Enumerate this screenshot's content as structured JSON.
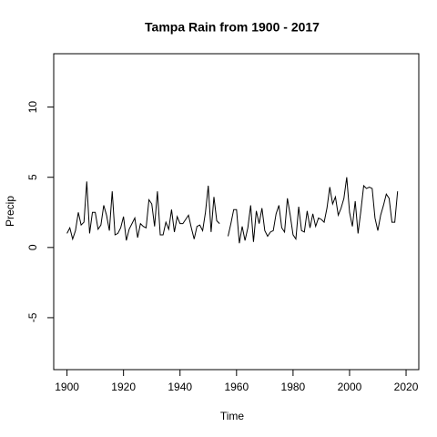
{
  "chart_data": {
    "type": "line",
    "title": "Tampa Rain from 1900 - 2017",
    "x_label": "Time",
    "y_label": "Precip",
    "x": [
      1900,
      1901,
      1902,
      1903,
      1904,
      1905,
      1906,
      1907,
      1908,
      1909,
      1910,
      1911,
      1912,
      1913,
      1914,
      1915,
      1916,
      1917,
      1918,
      1919,
      1920,
      1921,
      1922,
      1923,
      1924,
      1925,
      1926,
      1927,
      1928,
      1929,
      1930,
      1931,
      1932,
      1933,
      1934,
      1935,
      1936,
      1937,
      1938,
      1939,
      1940,
      1941,
      1942,
      1943,
      1944,
      1945,
      1946,
      1947,
      1948,
      1949,
      1950,
      1951,
      1952,
      1953,
      1954,
      1955,
      1956,
      1957,
      1958,
      1959,
      1960,
      1961,
      1962,
      1963,
      1964,
      1965,
      1966,
      1967,
      1968,
      1969,
      1970,
      1971,
      1972,
      1973,
      1974,
      1975,
      1976,
      1977,
      1978,
      1979,
      1980,
      1981,
      1982,
      1983,
      1984,
      1985,
      1986,
      1987,
      1988,
      1989,
      1990,
      1991,
      1992,
      1993,
      1994,
      1995,
      1996,
      1997,
      1998,
      1999,
      2000,
      2001,
      2002,
      2003,
      2004,
      2005,
      2006,
      2007,
      2008,
      2009,
      2010,
      2011,
      2012,
      2013,
      2014,
      2015,
      2016,
      2017
    ],
    "values": [
      1.0,
      1.4,
      0.6,
      1.2,
      2.5,
      1.6,
      1.8,
      4.7,
      1.0,
      2.5,
      2.5,
      1.3,
      1.6,
      3.0,
      2.3,
      1.2,
      4.0,
      0.9,
      1.0,
      1.4,
      2.2,
      0.5,
      1.3,
      1.7,
      2.1,
      0.7,
      1.7,
      1.5,
      1.4,
      3.4,
      3.1,
      1.5,
      4.0,
      0.9,
      0.9,
      1.8,
      1.3,
      2.7,
      1.1,
      2.2,
      1.7,
      1.7,
      2.0,
      2.3,
      1.4,
      0.6,
      1.5,
      1.6,
      1.2,
      2.5,
      4.4,
      1.1,
      3.6,
      1.9,
      1.7,
      null,
      null,
      0.8,
      1.7,
      2.7,
      2.7,
      0.3,
      1.5,
      0.5,
      1.4,
      3.0,
      0.4,
      2.6,
      1.7,
      2.8,
      1.2,
      0.8,
      1.1,
      1.2,
      2.4,
      3.0,
      1.4,
      1.1,
      3.5,
      2.3,
      0.9,
      0.6,
      2.9,
      1.2,
      1.1,
      2.6,
      1.4,
      2.4,
      1.5,
      2.1,
      2.0,
      1.8,
      2.8,
      4.3,
      3.1,
      3.6,
      2.3,
      2.8,
      3.5,
      5.0,
      2.5,
      1.5,
      3.3,
      1.0,
      2.6,
      4.4,
      4.2,
      4.3,
      4.2,
      2.1,
      1.2,
      2.3,
      3.0,
      3.8,
      3.5,
      1.8,
      1.8,
      4.0
    ],
    "color": "#000000",
    "xlim": [
      1895.3,
      2024.5
    ],
    "xticks": [
      1900,
      1920,
      1940,
      1960,
      1980,
      2000,
      2020
    ],
    "ylim": [
      -8.7,
      13.8
    ],
    "yticks": [
      -5,
      0,
      5,
      10
    ]
  }
}
